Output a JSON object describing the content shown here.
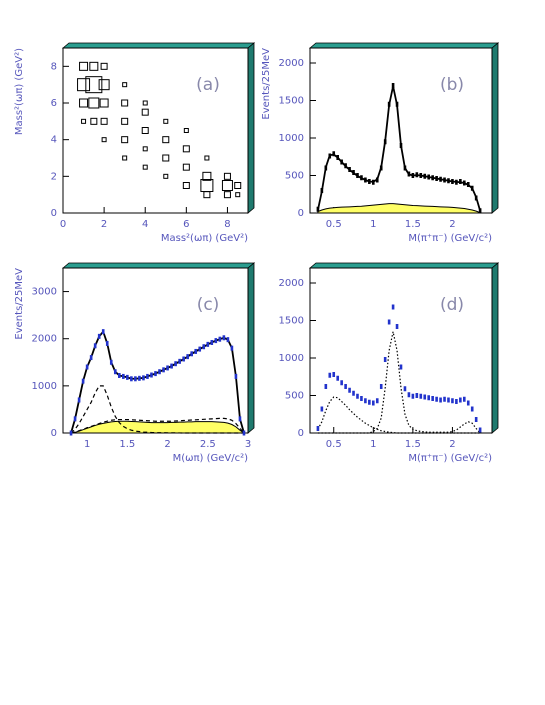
{
  "chart_data": [
    {
      "type": "scatter",
      "label": "(a)",
      "xlabel": "Mass²(ωπ) (GeV²)",
      "ylabel": "Mass²(ωπ) (GeV²)",
      "xlim": [
        0,
        9
      ],
      "ylim": [
        0,
        9
      ],
      "xticks": [
        0,
        2,
        4,
        6,
        8
      ],
      "yticks": [
        0,
        2,
        4,
        6,
        8
      ],
      "color": "#000000",
      "x": [
        1,
        1,
        1,
        1,
        1.5,
        1.5,
        1.5,
        1.5,
        2,
        2,
        2,
        2,
        2,
        3,
        3,
        3,
        3,
        3,
        4,
        4,
        4,
        4,
        4,
        5,
        5,
        5,
        5,
        6,
        6,
        6,
        6,
        7,
        7,
        7,
        7,
        8,
        8,
        8,
        8.5,
        8.5
      ],
      "y": [
        5,
        6,
        7,
        8,
        5,
        6,
        7,
        8,
        4,
        5,
        6,
        7,
        8,
        3,
        4,
        5,
        6,
        7,
        2.5,
        3.5,
        4.5,
        5.5,
        6,
        2,
        3,
        4,
        5,
        1.5,
        2.5,
        3.5,
        4.5,
        1,
        1.5,
        2,
        3,
        1,
        1.5,
        2,
        1,
        1.5
      ],
      "sizes": [
        2,
        4,
        6,
        4,
        3,
        5,
        8,
        4,
        2,
        3,
        4,
        5,
        3,
        2,
        3,
        3,
        3,
        2,
        2,
        2,
        3,
        3,
        2,
        2,
        3,
        3,
        2,
        3,
        3,
        3,
        2,
        3,
        6,
        4,
        2,
        3,
        5,
        3,
        2,
        3
      ]
    },
    {
      "type": "line",
      "label": "(b)",
      "xlabel": "M(π⁺π⁻) (GeV/c²)",
      "ylabel": "Events/25MeV",
      "xlim": [
        0.2,
        2.5
      ],
      "ylim": [
        0,
        2200
      ],
      "xticks": [
        0.5,
        1,
        1.5,
        2
      ],
      "yticks": [
        0,
        500,
        1000,
        1500,
        2000
      ],
      "x": [
        0.3,
        0.35,
        0.4,
        0.45,
        0.5,
        0.55,
        0.6,
        0.65,
        0.7,
        0.75,
        0.8,
        0.85,
        0.9,
        0.95,
        1.0,
        1.05,
        1.1,
        1.15,
        1.2,
        1.25,
        1.3,
        1.35,
        1.4,
        1.45,
        1.5,
        1.55,
        1.6,
        1.65,
        1.7,
        1.75,
        1.8,
        1.85,
        1.9,
        1.95,
        2.0,
        2.05,
        2.1,
        2.15,
        2.2,
        2.25,
        2.3,
        2.35
      ],
      "series": [
        {
          "style": "area",
          "color": "#ffff66",
          "values": [
            20,
            40,
            55,
            65,
            70,
            75,
            78,
            80,
            82,
            85,
            88,
            90,
            95,
            100,
            105,
            110,
            115,
            120,
            125,
            125,
            120,
            115,
            110,
            105,
            100,
            98,
            95,
            92,
            90,
            88,
            85,
            82,
            80,
            78,
            75,
            70,
            65,
            60,
            50,
            40,
            25,
            5
          ]
        },
        {
          "style": "line",
          "color": "#000000",
          "values": [
            40,
            290,
            610,
            770,
            780,
            740,
            680,
            625,
            575,
            535,
            495,
            465,
            440,
            420,
            415,
            450,
            610,
            960,
            1440,
            1690,
            1440,
            900,
            600,
            515,
            500,
            505,
            500,
            490,
            480,
            470,
            460,
            450,
            440,
            430,
            420,
            415,
            410,
            400,
            375,
            330,
            210,
            30
          ]
        },
        {
          "style": "points",
          "color": "#000000",
          "values": [
            50,
            300,
            600,
            760,
            790,
            740,
            680,
            630,
            580,
            540,
            500,
            470,
            440,
            420,
            410,
            440,
            600,
            950,
            1450,
            1700,
            1450,
            900,
            600,
            520,
            500,
            510,
            500,
            490,
            480,
            470,
            460,
            450,
            440,
            430,
            420,
            410,
            420,
            400,
            380,
            330,
            200,
            30
          ]
        }
      ]
    },
    {
      "type": "line",
      "label": "(c)",
      "xlabel": "M(ωπ) (GeV/c²)",
      "ylabel": "Events/25MeV",
      "xlim": [
        0.7,
        3.0
      ],
      "ylim": [
        0,
        3500
      ],
      "xticks": [
        1,
        1.5,
        2,
        2.5,
        3
      ],
      "yticks": [
        0,
        1000,
        2000,
        3000
      ],
      "x": [
        0.8,
        0.85,
        0.9,
        0.95,
        1.0,
        1.05,
        1.1,
        1.15,
        1.2,
        1.25,
        1.3,
        1.35,
        1.4,
        1.45,
        1.5,
        1.55,
        1.6,
        1.65,
        1.7,
        1.75,
        1.8,
        1.85,
        1.9,
        1.95,
        2.0,
        2.05,
        2.1,
        2.15,
        2.2,
        2.25,
        2.3,
        2.35,
        2.4,
        2.45,
        2.5,
        2.55,
        2.6,
        2.65,
        2.7,
        2.75,
        2.8,
        2.85,
        2.9,
        2.95
      ],
      "series": [
        {
          "style": "area",
          "color": "#ffff66",
          "values": [
            0,
            15,
            40,
            70,
            100,
            130,
            160,
            185,
            205,
            220,
            235,
            245,
            250,
            250,
            250,
            245,
            240,
            235,
            230,
            225,
            220,
            220,
            220,
            220,
            220,
            225,
            225,
            230,
            230,
            235,
            235,
            240,
            240,
            240,
            240,
            240,
            235,
            230,
            225,
            210,
            180,
            130,
            60,
            0
          ]
        },
        {
          "style": "line",
          "color": "#000000",
          "dash": "dashed",
          "values": [
            0,
            80,
            200,
            350,
            500,
            650,
            850,
            1000,
            1000,
            800,
            550,
            350,
            220,
            140,
            90,
            60,
            40,
            30,
            20,
            15,
            10,
            8,
            6,
            5,
            4,
            3,
            2,
            1,
            0,
            0,
            0,
            0,
            0,
            0,
            0,
            0,
            0,
            0,
            0,
            0,
            0,
            0,
            0,
            0
          ]
        },
        {
          "style": "line",
          "color": "#000000",
          "dash": "dashed",
          "values": [
            0,
            20,
            50,
            80,
            110,
            140,
            170,
            200,
            230,
            250,
            270,
            280,
            285,
            285,
            285,
            280,
            275,
            270,
            265,
            260,
            255,
            250,
            250,
            250,
            250,
            250,
            255,
            260,
            265,
            270,
            275,
            280,
            285,
            290,
            295,
            300,
            305,
            310,
            310,
            300,
            270,
            200,
            100,
            0
          ]
        },
        {
          "style": "line",
          "color": "#000000",
          "values": [
            0,
            300,
            700,
            1100,
            1400,
            1600,
            1850,
            2050,
            2150,
            1900,
            1500,
            1300,
            1220,
            1200,
            1180,
            1150,
            1150,
            1160,
            1170,
            1200,
            1230,
            1260,
            1300,
            1340,
            1380,
            1420,
            1470,
            1520,
            1570,
            1620,
            1680,
            1730,
            1780,
            1830,
            1880,
            1920,
            1960,
            1990,
            2020,
            1980,
            1800,
            1200,
            300,
            0
          ]
        },
        {
          "style": "points",
          "color": "#2233cc",
          "values": [
            0,
            300,
            700,
            1100,
            1400,
            1600,
            1850,
            2050,
            2150,
            1900,
            1500,
            1300,
            1220,
            1200,
            1180,
            1150,
            1150,
            1160,
            1170,
            1200,
            1230,
            1260,
            1300,
            1340,
            1380,
            1420,
            1470,
            1520,
            1570,
            1620,
            1680,
            1730,
            1780,
            1830,
            1880,
            1920,
            1960,
            1990,
            2020,
            1980,
            1800,
            1200,
            300,
            0
          ]
        }
      ]
    },
    {
      "type": "line",
      "label": "(d)",
      "xlabel": "M(π⁺π⁻) (GeV/c²)",
      "xlim": [
        0.2,
        2.5
      ],
      "ylim": [
        0,
        2200
      ],
      "xticks": [
        0.5,
        1,
        1.5,
        2
      ],
      "yticks": [
        0,
        500,
        1000,
        1500,
        2000
      ],
      "x": [
        0.3,
        0.35,
        0.4,
        0.45,
        0.5,
        0.55,
        0.6,
        0.65,
        0.7,
        0.75,
        0.8,
        0.85,
        0.9,
        0.95,
        1.0,
        1.05,
        1.1,
        1.15,
        1.2,
        1.25,
        1.3,
        1.35,
        1.4,
        1.45,
        1.5,
        1.55,
        1.6,
        1.65,
        1.7,
        1.75,
        1.8,
        1.85,
        1.9,
        1.95,
        2.0,
        2.05,
        2.1,
        2.15,
        2.2,
        2.25,
        2.3,
        2.35
      ],
      "series": [
        {
          "style": "line",
          "color": "#000000",
          "dash": "dotted",
          "values": [
            50,
            150,
            300,
            420,
            480,
            470,
            420,
            370,
            310,
            260,
            210,
            170,
            130,
            100,
            70,
            50,
            30,
            20,
            10,
            5,
            0,
            0,
            0,
            0,
            0,
            0,
            0,
            0,
            0,
            0,
            0,
            0,
            0,
            0,
            0,
            0,
            0,
            0,
            0,
            0,
            0,
            0
          ]
        },
        {
          "style": "line",
          "color": "#000000",
          "dash": "dotted",
          "values": [
            0,
            0,
            0,
            0,
            0,
            0,
            0,
            0,
            0,
            0,
            0,
            0,
            0,
            0,
            20,
            60,
            200,
            600,
            1100,
            1350,
            1100,
            600,
            250,
            100,
            50,
            30,
            20,
            15,
            10,
            10,
            10,
            10,
            10,
            10,
            20,
            40,
            80,
            120,
            150,
            130,
            60,
            0
          ]
        },
        {
          "style": "points",
          "color": "#2233cc",
          "values": [
            60,
            320,
            620,
            770,
            780,
            730,
            670,
            620,
            570,
            530,
            490,
            460,
            430,
            410,
            400,
            430,
            620,
            980,
            1480,
            1680,
            1420,
            880,
            590,
            510,
            490,
            500,
            490,
            480,
            470,
            460,
            450,
            440,
            450,
            440,
            430,
            420,
            440,
            450,
            400,
            320,
            180,
            40
          ]
        }
      ]
    }
  ]
}
